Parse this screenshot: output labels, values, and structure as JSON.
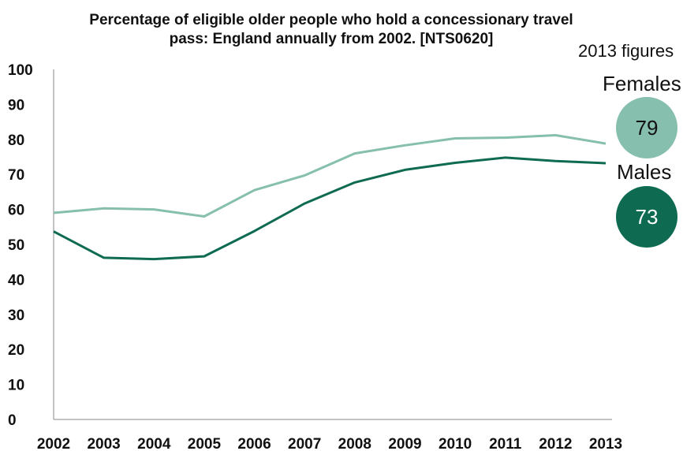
{
  "chart_data": {
    "type": "line",
    "title": "Percentage of eligible older people who hold a concessionary travel pass: England annually from 2002. [NTS0620]",
    "title_lines": [
      "Percentage of eligible older people who hold a concessionary travel",
      "pass: England annually from 2002. [NTS0620]"
    ],
    "xlabel": "",
    "ylabel": "",
    "categories": [
      "2002",
      "2003",
      "2004",
      "2005",
      "2006",
      "2007",
      "2008",
      "2009",
      "2010",
      "2011",
      "2012",
      "2013"
    ],
    "ylim": [
      0,
      100
    ],
    "yticks": [
      "0",
      "10",
      "20",
      "30",
      "40",
      "50",
      "60",
      "70",
      "80",
      "90",
      "100"
    ],
    "grid": false,
    "series": [
      {
        "name": "Females",
        "color": "#86bfae",
        "values": [
          59,
          60.3,
          60,
          58,
          65.5,
          69.7,
          76,
          78.3,
          80.3,
          80.5,
          81.2,
          78.8
        ]
      },
      {
        "name": "Males",
        "color": "#0e6b52",
        "values": [
          53.7,
          46.2,
          45.8,
          46.6,
          53.8,
          61.7,
          67.7,
          71.3,
          73.3,
          74.8,
          73.8,
          73.2
        ]
      }
    ]
  },
  "side_panel": {
    "heading": "2013 figures",
    "females": {
      "label": "Females",
      "value": "79",
      "color": "#86bfae"
    },
    "males": {
      "label": "Males",
      "value": "73",
      "color": "#0e6b52",
      "text_color": "#ffffff"
    }
  }
}
